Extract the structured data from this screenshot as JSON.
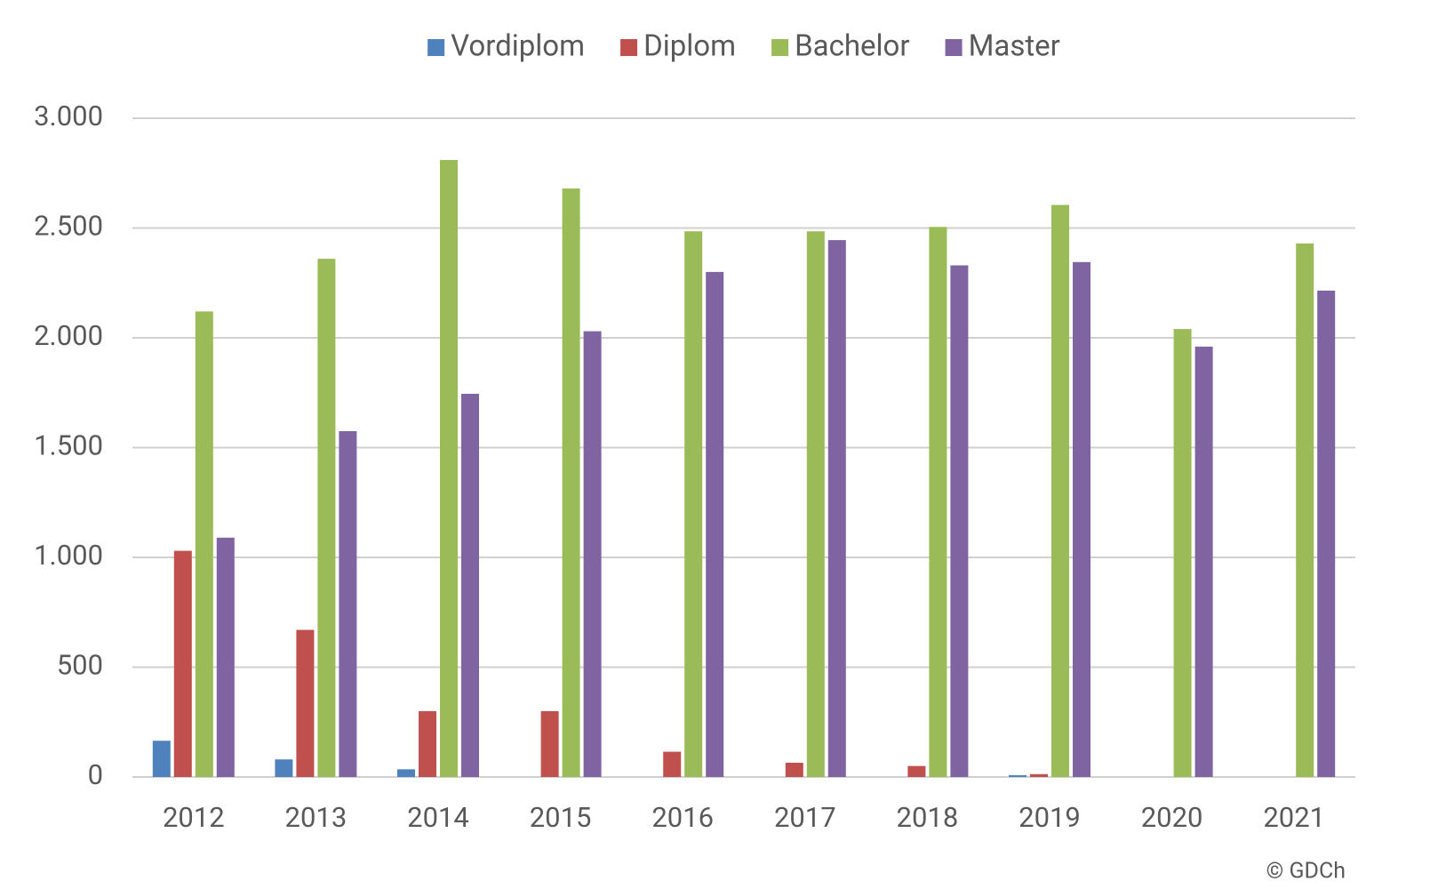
{
  "chart_data": {
    "type": "bar",
    "categories": [
      "2012",
      "2013",
      "2014",
      "2015",
      "2016",
      "2017",
      "2018",
      "2019",
      "2020",
      "2021"
    ],
    "series": [
      {
        "name": "Vordiplom",
        "color": "#4f81bd",
        "values": [
          165,
          80,
          35,
          0,
          0,
          0,
          0,
          8,
          0,
          0
        ]
      },
      {
        "name": "Diplom",
        "color": "#c0504d",
        "values": [
          1030,
          670,
          300,
          300,
          115,
          65,
          50,
          13,
          0,
          0
        ]
      },
      {
        "name": "Bachelor",
        "color": "#9bbb59",
        "values": [
          2120,
          2360,
          2810,
          2680,
          2485,
          2485,
          2505,
          2605,
          2040,
          2430
        ]
      },
      {
        "name": "Master",
        "color": "#8064a2",
        "values": [
          1090,
          1575,
          1745,
          2030,
          2300,
          2445,
          2330,
          2345,
          1960,
          2215
        ]
      }
    ],
    "ylim": [
      0,
      3000
    ],
    "yticks": [
      0,
      500,
      {
        "value": 1000,
        "label": "1.000"
      },
      {
        "value": 1500,
        "label": "1.500"
      },
      {
        "value": 2000,
        "label": "2.000"
      },
      {
        "value": 2500,
        "label": "2.500"
      },
      {
        "value": 3000,
        "label": "3.000"
      }
    ],
    "grid": true,
    "legend": "top",
    "source": "© GDCh"
  }
}
